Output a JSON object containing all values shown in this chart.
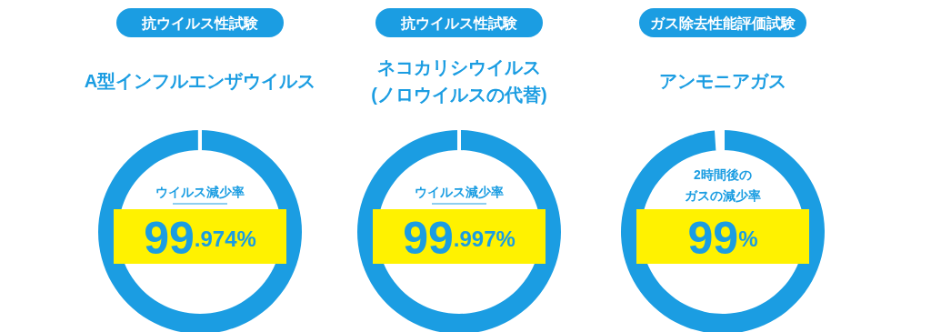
{
  "chart_data": [
    {
      "type": "donut",
      "title": "抗ウイルス性試験",
      "subtitle": "A型インフルエンザウイルス",
      "categories": [
        null,
        null
      ],
      "values": [
        99.974,
        0.026
      ],
      "colors": [
        "#1b9de2",
        "#ffffff"
      ],
      "value_labels": [
        "99.974%",
        null
      ],
      "annotations": [
        "ウイルス減少率"
      ]
    },
    {
      "type": "donut",
      "title": "抗ウイルス性試験",
      "subtitle": "ネコカリシウイルス\n(ノロウイルスの代替)",
      "categories": [
        null,
        null
      ],
      "values": [
        99.997,
        0.003
      ],
      "colors": [
        "#1b9de2",
        "#ffffff"
      ],
      "value_labels": [
        "99.997%",
        null
      ],
      "annotations": [
        "ウイルス減少率"
      ]
    },
    {
      "type": "donut",
      "title": "ガス除去性能評価試験",
      "subtitle": "アンモニアガス",
      "categories": [
        null,
        null
      ],
      "values": [
        99,
        1
      ],
      "colors": [
        "#1b9de2",
        "#ffffff"
      ],
      "value_labels": [
        "99%",
        null
      ],
      "annotations": [
        "2時間後の",
        "ガスの減少率"
      ]
    }
  ]
}
